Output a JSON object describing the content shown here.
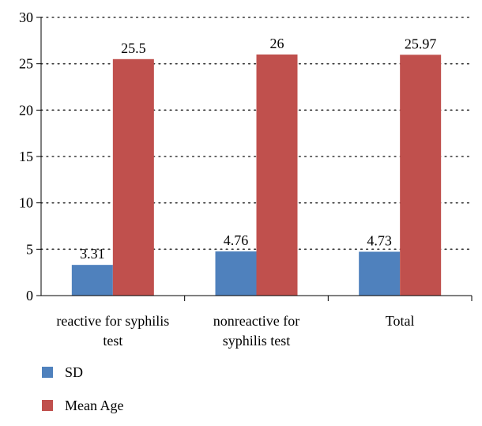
{
  "chart_data": {
    "type": "bar",
    "title": "",
    "xlabel": "",
    "ylabel": "",
    "categories": [
      [
        "reactive for syphilis",
        "test"
      ],
      [
        "nonreactive for",
        "syphilis test"
      ],
      [
        "Total"
      ]
    ],
    "series": [
      {
        "name": "SD",
        "color": "#4f81bd",
        "values": [
          3.31,
          4.76,
          4.73
        ],
        "labels": [
          "3.31",
          "4.76",
          "4.73"
        ]
      },
      {
        "name": "Mean Age",
        "color": "#c0504d",
        "values": [
          25.5,
          26,
          25.97
        ],
        "labels": [
          "25.5",
          "26",
          "25.97"
        ]
      }
    ],
    "ylim": [
      0,
      30
    ],
    "yticks": [
      0,
      5,
      10,
      15,
      20,
      25,
      30
    ],
    "grid": "horizontal-dotted",
    "legend_position": "bottom-left"
  }
}
